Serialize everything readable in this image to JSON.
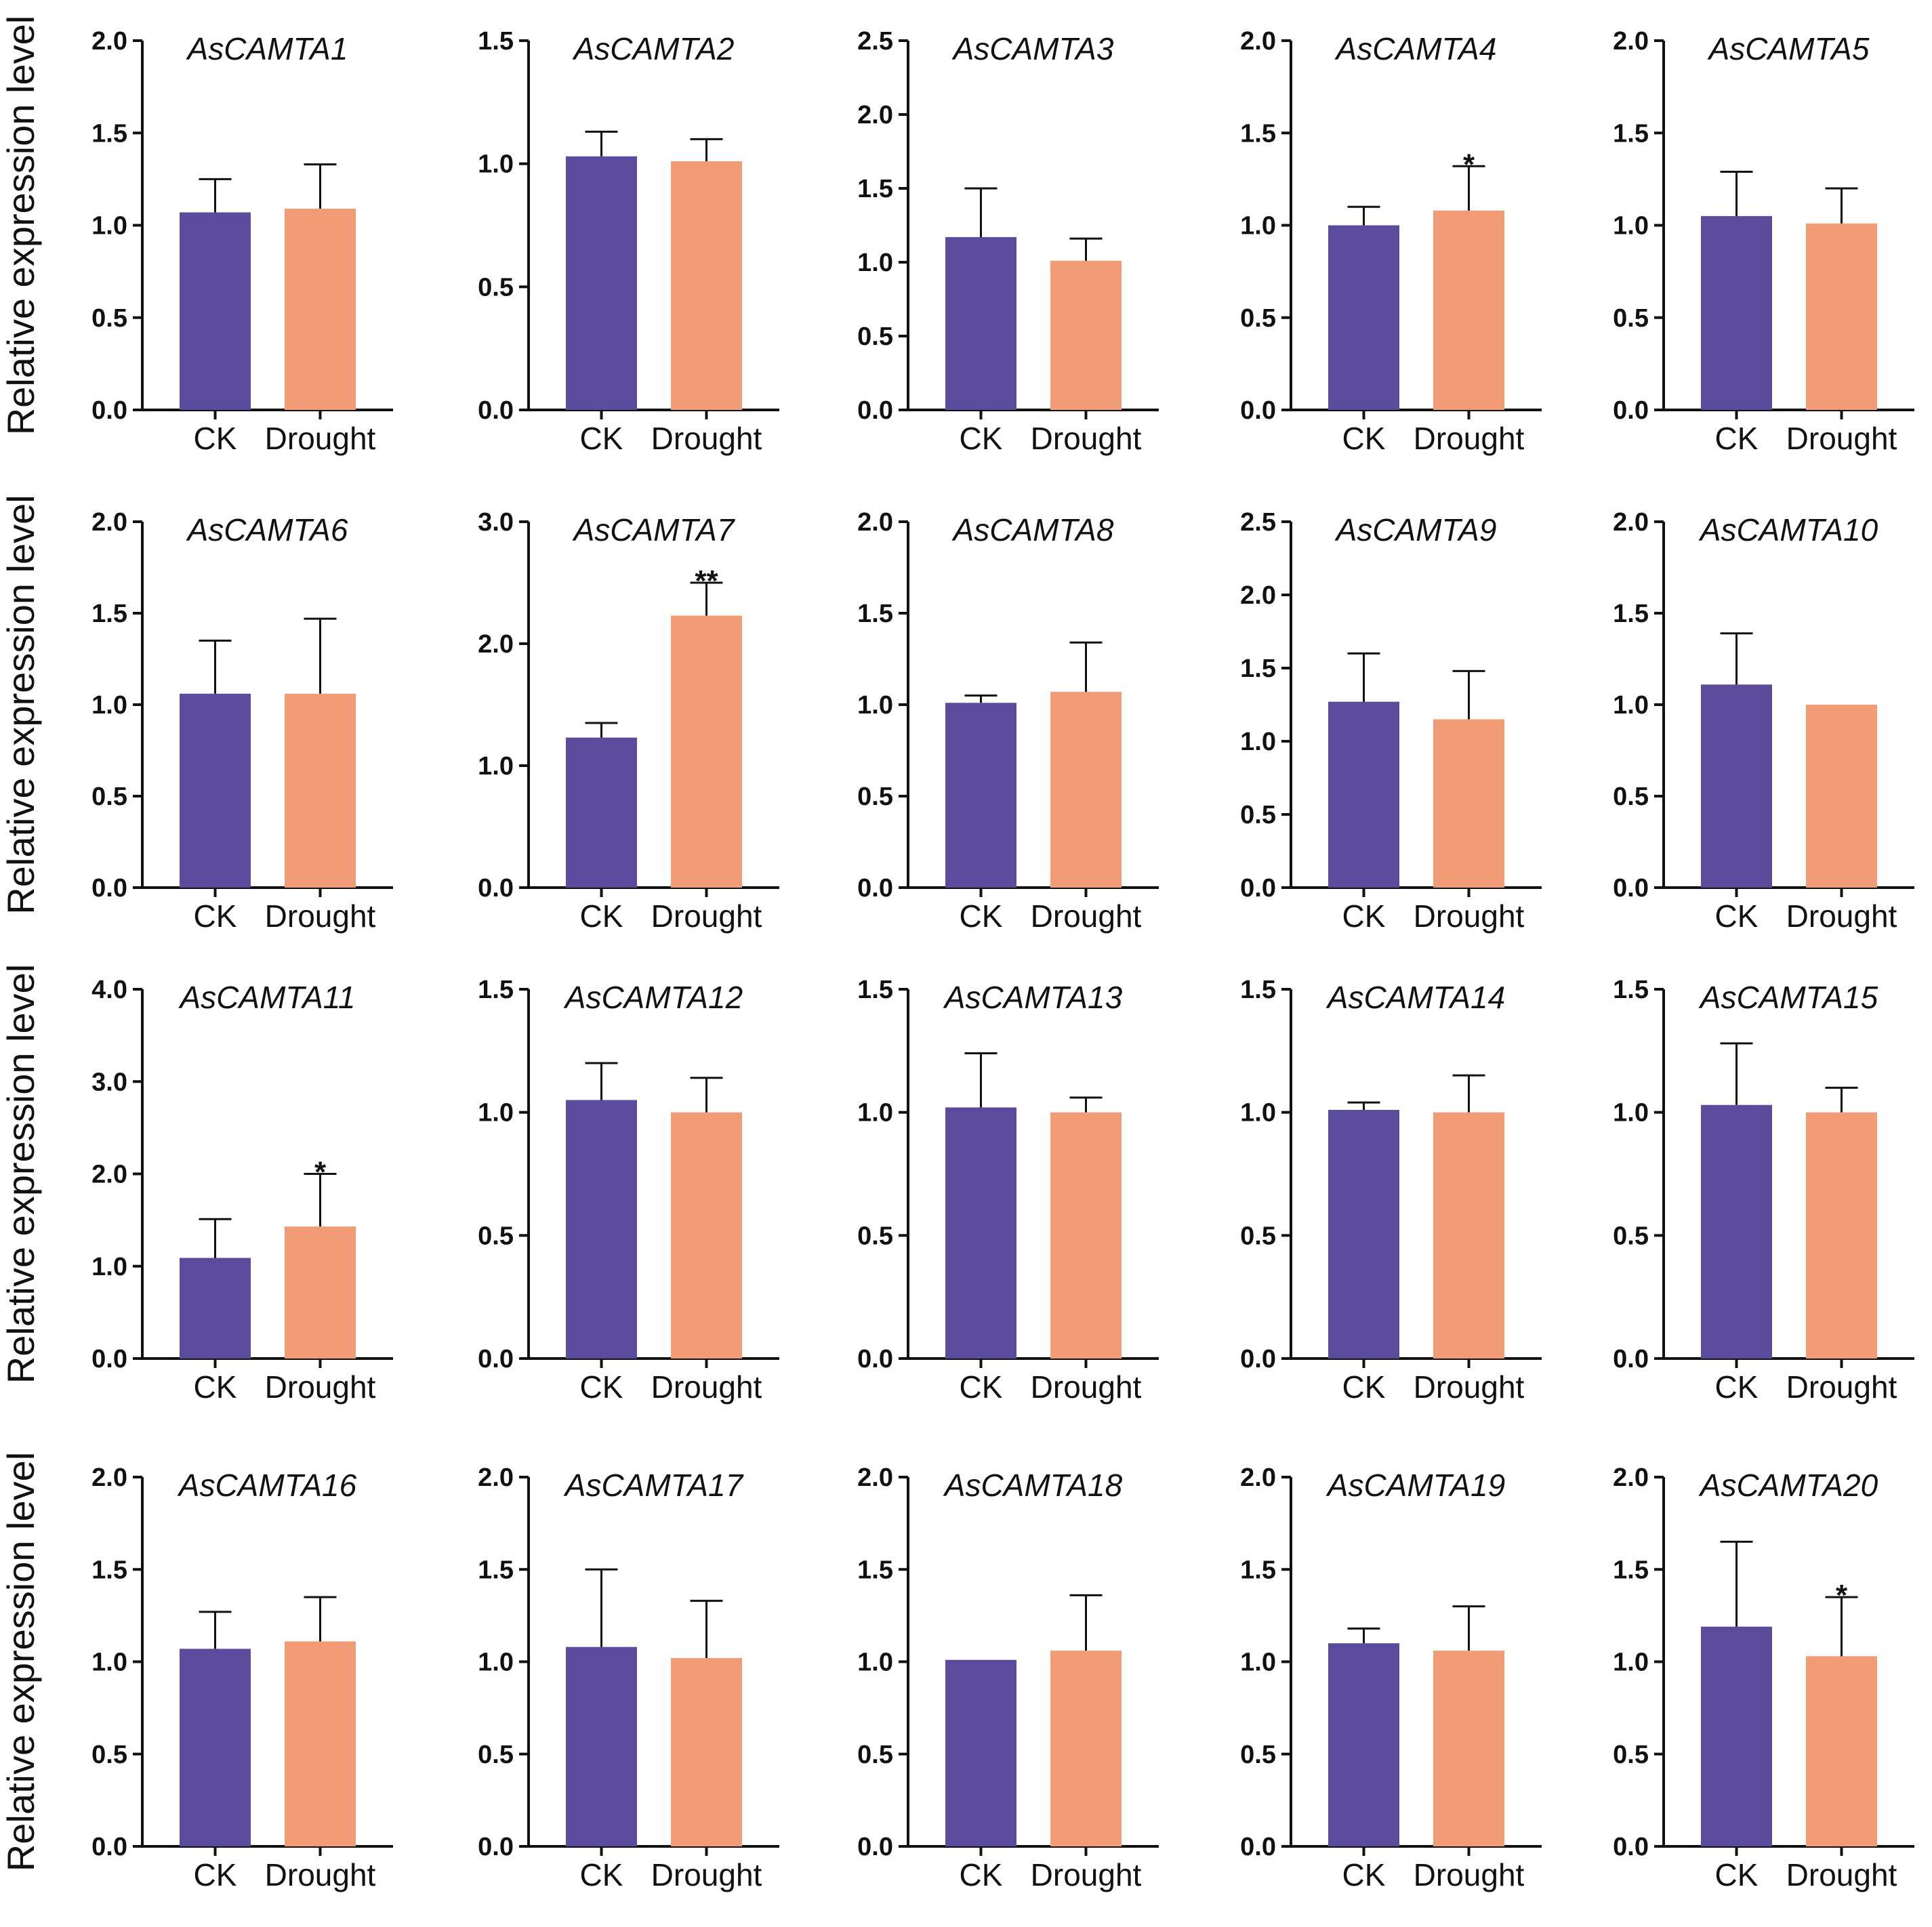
{
  "colors": {
    "ck": "#5a4b9c",
    "drought": "#f29b77",
    "axis": "#111111"
  },
  "ylabel": "Relative expression level",
  "categories": [
    "CK",
    "Drought"
  ],
  "chart_data": [
    {
      "type": "bar",
      "title": "AsCAMTA1",
      "categories": [
        "CK",
        "Drought"
      ],
      "values": [
        1.07,
        1.09
      ],
      "errors": [
        0.18,
        0.24
      ],
      "ylim": [
        0,
        2.0
      ],
      "ticks": [
        "0.0",
        "0.5",
        "1.0",
        "1.5",
        "2.0"
      ],
      "sig": [
        "",
        ""
      ],
      "ylabel": "Relative expression level"
    },
    {
      "type": "bar",
      "title": "AsCAMTA2",
      "categories": [
        "CK",
        "Drought"
      ],
      "values": [
        1.03,
        1.01
      ],
      "errors": [
        0.1,
        0.09
      ],
      "ylim": [
        0,
        1.5
      ],
      "ticks": [
        "0.0",
        "0.5",
        "1.0",
        "1.5"
      ],
      "sig": [
        "",
        ""
      ]
    },
    {
      "type": "bar",
      "title": "AsCAMTA3",
      "categories": [
        "CK",
        "Drought"
      ],
      "values": [
        1.17,
        1.01
      ],
      "errors": [
        0.33,
        0.15
      ],
      "ylim": [
        0,
        2.5
      ],
      "ticks": [
        "0.0",
        "0.5",
        "1.0",
        "1.5",
        "2.0",
        "2.5"
      ],
      "sig": [
        "",
        ""
      ]
    },
    {
      "type": "bar",
      "title": "AsCAMTA4",
      "categories": [
        "CK",
        "Drought"
      ],
      "values": [
        1.0,
        1.08
      ],
      "errors": [
        0.1,
        0.24
      ],
      "ylim": [
        0,
        2.0
      ],
      "ticks": [
        "0.0",
        "0.5",
        "1.0",
        "1.5",
        "2.0"
      ],
      "sig": [
        "",
        "*"
      ]
    },
    {
      "type": "bar",
      "title": "AsCAMTA5",
      "categories": [
        "CK",
        "Drought"
      ],
      "values": [
        1.05,
        1.01
      ],
      "errors": [
        0.24,
        0.19
      ],
      "ylim": [
        0,
        2.0
      ],
      "ticks": [
        "0.0",
        "0.5",
        "1.0",
        "1.5",
        "2.0"
      ],
      "sig": [
        "",
        ""
      ]
    },
    {
      "type": "bar",
      "title": "AsCAMTA6",
      "categories": [
        "CK",
        "Drought"
      ],
      "values": [
        1.06,
        1.06
      ],
      "errors": [
        0.29,
        0.41
      ],
      "ylim": [
        0,
        2.0
      ],
      "ticks": [
        "0.0",
        "0.5",
        "1.0",
        "1.5",
        "2.0"
      ],
      "sig": [
        "",
        ""
      ],
      "ylabel": "Relative expression level"
    },
    {
      "type": "bar",
      "title": "AsCAMTA7",
      "categories": [
        "CK",
        "Drought"
      ],
      "values": [
        1.23,
        2.23
      ],
      "errors": [
        0.12,
        0.27
      ],
      "ylim": [
        0,
        3.0
      ],
      "ticks": [
        "0.0",
        "1.0",
        "2.0",
        "3.0"
      ],
      "sig": [
        "",
        "**"
      ]
    },
    {
      "type": "bar",
      "title": "AsCAMTA8",
      "categories": [
        "CK",
        "Drought"
      ],
      "values": [
        1.01,
        1.07
      ],
      "errors": [
        0.04,
        0.27
      ],
      "ylim": [
        0,
        2.0
      ],
      "ticks": [
        "0.0",
        "0.5",
        "1.0",
        "1.5",
        "2.0"
      ],
      "sig": [
        "",
        ""
      ]
    },
    {
      "type": "bar",
      "title": "AsCAMTA9",
      "categories": [
        "CK",
        "Drought"
      ],
      "values": [
        1.27,
        1.15
      ],
      "errors": [
        0.33,
        0.33
      ],
      "ylim": [
        0,
        2.5
      ],
      "ticks": [
        "0.0",
        "0.5",
        "1.0",
        "1.5",
        "2.0",
        "2.5"
      ],
      "sig": [
        "",
        ""
      ]
    },
    {
      "type": "bar",
      "title": "AsCAMTA10",
      "categories": [
        "CK",
        "Drought"
      ],
      "values": [
        1.11,
        1.0
      ],
      "errors": [
        0.28,
        0.0
      ],
      "ylim": [
        0,
        2.0
      ],
      "ticks": [
        "0.0",
        "0.5",
        "1.0",
        "1.5",
        "2.0"
      ],
      "sig": [
        "",
        ""
      ]
    },
    {
      "type": "bar",
      "title": "AsCAMTA11",
      "categories": [
        "CK",
        "Drought"
      ],
      "values": [
        1.09,
        1.43
      ],
      "errors": [
        0.42,
        0.57
      ],
      "ylim": [
        0,
        4.0
      ],
      "ticks": [
        "0.0",
        "1.0",
        "2.0",
        "3.0",
        "4.0"
      ],
      "sig": [
        "",
        "*"
      ],
      "ylabel": "Relative expression level"
    },
    {
      "type": "bar",
      "title": "AsCAMTA12",
      "categories": [
        "CK",
        "Drought"
      ],
      "values": [
        1.05,
        1.0
      ],
      "errors": [
        0.15,
        0.14
      ],
      "ylim": [
        0,
        1.5
      ],
      "ticks": [
        "0.0",
        "0.5",
        "1.0",
        "1.5"
      ],
      "sig": [
        "",
        ""
      ]
    },
    {
      "type": "bar",
      "title": "AsCAMTA13",
      "categories": [
        "CK",
        "Drought"
      ],
      "values": [
        1.02,
        1.0
      ],
      "errors": [
        0.22,
        0.06
      ],
      "ylim": [
        0,
        1.5
      ],
      "ticks": [
        "0.0",
        "0.5",
        "1.0",
        "1.5"
      ],
      "sig": [
        "",
        ""
      ]
    },
    {
      "type": "bar",
      "title": "AsCAMTA14",
      "categories": [
        "CK",
        "Drought"
      ],
      "values": [
        1.01,
        1.0
      ],
      "errors": [
        0.03,
        0.15
      ],
      "ylim": [
        0,
        1.5
      ],
      "ticks": [
        "0.0",
        "0.5",
        "1.0",
        "1.5"
      ],
      "sig": [
        "",
        ""
      ]
    },
    {
      "type": "bar",
      "title": "AsCAMTA15",
      "categories": [
        "CK",
        "Drought"
      ],
      "values": [
        1.03,
        1.0
      ],
      "errors": [
        0.25,
        0.1
      ],
      "ylim": [
        0,
        1.5
      ],
      "ticks": [
        "0.0",
        "0.5",
        "1.0",
        "1.5"
      ],
      "sig": [
        "",
        ""
      ]
    },
    {
      "type": "bar",
      "title": "AsCAMTA16",
      "categories": [
        "CK",
        "Drought"
      ],
      "values": [
        1.07,
        1.11
      ],
      "errors": [
        0.2,
        0.24
      ],
      "ylim": [
        0,
        2.0
      ],
      "ticks": [
        "0.0",
        "0.5",
        "1.0",
        "1.5",
        "2.0"
      ],
      "sig": [
        "",
        ""
      ],
      "ylabel": "Relative expression level"
    },
    {
      "type": "bar",
      "title": "AsCAMTA17",
      "categories": [
        "CK",
        "Drought"
      ],
      "values": [
        1.08,
        1.02
      ],
      "errors": [
        0.42,
        0.31
      ],
      "ylim": [
        0,
        2.0
      ],
      "ticks": [
        "0.0",
        "0.5",
        "1.0",
        "1.5",
        "2.0"
      ],
      "sig": [
        "",
        ""
      ]
    },
    {
      "type": "bar",
      "title": "AsCAMTA18",
      "categories": [
        "CK",
        "Drought"
      ],
      "values": [
        1.01,
        1.06
      ],
      "errors": [
        0.0,
        0.3
      ],
      "ylim": [
        0,
        2.0
      ],
      "ticks": [
        "0.0",
        "0.5",
        "1.0",
        "1.5",
        "2.0"
      ],
      "sig": [
        "",
        ""
      ]
    },
    {
      "type": "bar",
      "title": "AsCAMTA19",
      "categories": [
        "CK",
        "Drought"
      ],
      "values": [
        1.1,
        1.06
      ],
      "errors": [
        0.08,
        0.24
      ],
      "ylim": [
        0,
        2.0
      ],
      "ticks": [
        "0.0",
        "0.5",
        "1.0",
        "1.5",
        "2.0"
      ],
      "sig": [
        "",
        ""
      ]
    },
    {
      "type": "bar",
      "title": "AsCAMTA20",
      "categories": [
        "CK",
        "Drought"
      ],
      "values": [
        1.19,
        1.03
      ],
      "errors": [
        0.46,
        0.32
      ],
      "ylim": [
        0,
        2.0
      ],
      "ticks": [
        "0.0",
        "0.5",
        "1.0",
        "1.5",
        "2.0"
      ],
      "sig": [
        "",
        "*"
      ]
    }
  ]
}
